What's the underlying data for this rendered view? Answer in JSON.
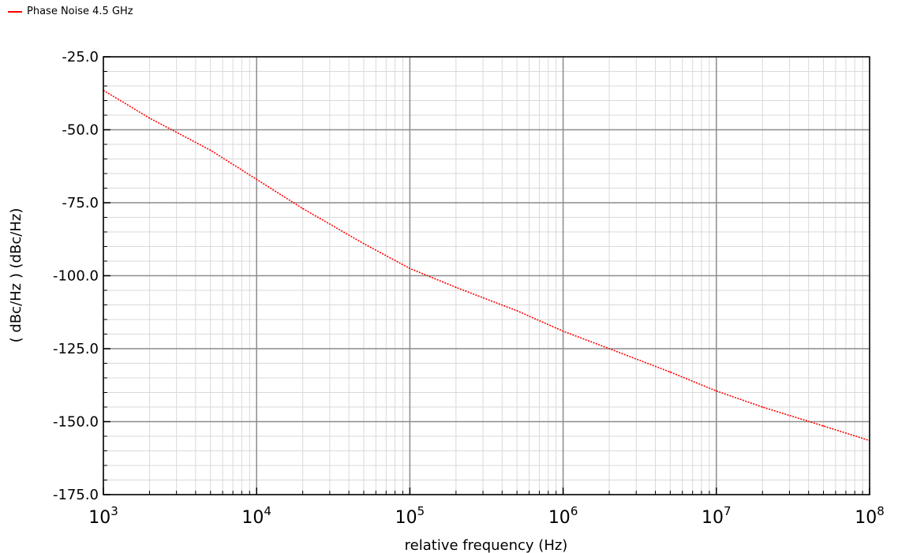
{
  "chart_data": {
    "type": "line",
    "title": "",
    "xlabel": "relative frequency (Hz)",
    "ylabel": "( dBc/Hz ) (dBc/Hz)",
    "xscale": "log",
    "xlim": [
      1000,
      100000000
    ],
    "ylim": [
      -175,
      -25
    ],
    "grid": true,
    "legend": "top-left",
    "x_tick_labels": [
      {
        "base": "10",
        "exp": "3",
        "value": 1000
      },
      {
        "base": "10",
        "exp": "4",
        "value": 10000
      },
      {
        "base": "10",
        "exp": "5",
        "value": 100000
      },
      {
        "base": "10",
        "exp": "6",
        "value": 1000000
      },
      {
        "base": "10",
        "exp": "7",
        "value": 10000000
      },
      {
        "base": "10",
        "exp": "8",
        "value": 100000000
      }
    ],
    "y_tick_labels": [
      {
        "label": "-25.0",
        "value": -25
      },
      {
        "label": "-50.0",
        "value": -50
      },
      {
        "label": "-75.0",
        "value": -75
      },
      {
        "label": "-100.0",
        "value": -100
      },
      {
        "label": "-125.0",
        "value": -125
      },
      {
        "label": "-150.0",
        "value": -150
      },
      {
        "label": "-175.0",
        "value": -175
      }
    ],
    "series": [
      {
        "name": "Phase Noise 4.5 GHz",
        "color": "#ff0000",
        "points": [
          [
            1000,
            -36.5
          ],
          [
            2000,
            -46
          ],
          [
            5000,
            -57
          ],
          [
            10000,
            -67
          ],
          [
            20000,
            -77
          ],
          [
            50000,
            -89
          ],
          [
            100000,
            -97.5
          ],
          [
            200000,
            -104
          ],
          [
            500000,
            -112
          ],
          [
            1000000,
            -119
          ],
          [
            2000000,
            -125
          ],
          [
            5000000,
            -133
          ],
          [
            10000000,
            -139.5
          ],
          [
            20000000,
            -145
          ],
          [
            50000000,
            -151.5
          ],
          [
            100000000,
            -156.5
          ]
        ]
      }
    ]
  }
}
